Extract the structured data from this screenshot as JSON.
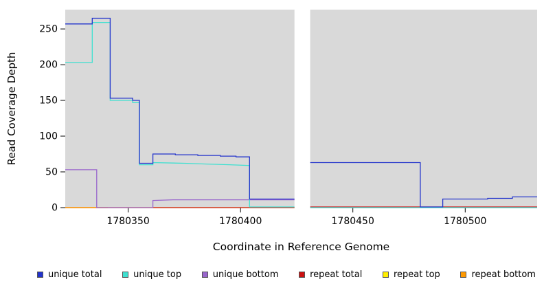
{
  "chart_data": {
    "type": "line",
    "title": "",
    "xlabel": "Coordinate in Reference Genome",
    "ylabel": "Read Coverage Depth",
    "xlim": [
      1780322,
      1780532
    ],
    "ylim": [
      0,
      277
    ],
    "xticks": [
      1780350,
      1780400,
      1780450,
      1780500
    ],
    "yticks": [
      0,
      50,
      100,
      150,
      200,
      250
    ],
    "plot_bg": "#d9d9d9",
    "grid": false,
    "legend_position": "bottom",
    "gap": {
      "x0": 1780424,
      "x1": 1780431
    },
    "series": [
      {
        "name": "repeat top",
        "color": "#ffee00",
        "segments": [
          [
            [
              1780322,
              0
            ],
            [
              1780424,
              0
            ]
          ],
          [
            [
              1780431,
              0
            ],
            [
              1780532,
              0
            ]
          ]
        ]
      },
      {
        "name": "repeat total",
        "color": "#cc1111",
        "segments": [
          [
            [
              1780322,
              0
            ],
            [
              1780424,
              0
            ]
          ],
          [
            [
              1780431,
              1
            ],
            [
              1780532,
              1
            ]
          ]
        ]
      },
      {
        "name": "repeat bottom",
        "color": "#ff9900",
        "segments": [
          [
            [
              1780322,
              0
            ],
            [
              1780341,
              0
            ]
          ]
        ]
      },
      {
        "name": "unique bottom",
        "color": "#9966cc",
        "segments": [
          [
            [
              1780322,
              53
            ],
            [
              1780336,
              53
            ],
            [
              1780336,
              0
            ],
            [
              1780361,
              0
            ],
            [
              1780361,
              10
            ],
            [
              1780370,
              11
            ],
            [
              1780404,
              11
            ],
            [
              1780424,
              11
            ]
          ],
          [
            [
              1780431,
              0
            ],
            [
              1780532,
              0
            ]
          ]
        ]
      },
      {
        "name": "unique top",
        "color": "#3fe0d0",
        "segments": [
          [
            [
              1780322,
              203
            ],
            [
              1780334,
              203
            ],
            [
              1780334,
              259
            ],
            [
              1780342,
              259
            ],
            [
              1780342,
              150
            ],
            [
              1780352,
              150
            ],
            [
              1780352,
              147
            ],
            [
              1780355,
              147
            ],
            [
              1780355,
              60
            ],
            [
              1780361,
              60
            ],
            [
              1780361,
              63
            ],
            [
              1780375,
              62
            ],
            [
              1780385,
              61
            ],
            [
              1780395,
              60
            ],
            [
              1780404,
              59
            ],
            [
              1780404,
              1
            ],
            [
              1780424,
              1
            ]
          ],
          [
            [
              1780431,
              0
            ],
            [
              1780532,
              0
            ]
          ]
        ]
      },
      {
        "name": "unique total",
        "color": "#2233cc",
        "segments": [
          [
            [
              1780322,
              257
            ],
            [
              1780334,
              257
            ],
            [
              1780334,
              265
            ],
            [
              1780342,
              265
            ],
            [
              1780342,
              153
            ],
            [
              1780352,
              153
            ],
            [
              1780352,
              150
            ],
            [
              1780355,
              150
            ],
            [
              1780355,
              62
            ],
            [
              1780361,
              62
            ],
            [
              1780361,
              75
            ],
            [
              1780371,
              75
            ],
            [
              1780371,
              74
            ],
            [
              1780381,
              74
            ],
            [
              1780381,
              73
            ],
            [
              1780391,
              73
            ],
            [
              1780391,
              72
            ],
            [
              1780398,
              72
            ],
            [
              1780398,
              71
            ],
            [
              1780404,
              71
            ],
            [
              1780404,
              12
            ],
            [
              1780424,
              12
            ]
          ],
          [
            [
              1780431,
              63
            ],
            [
              1780480,
              63
            ],
            [
              1780480,
              1
            ],
            [
              1780490,
              1
            ],
            [
              1780490,
              12
            ],
            [
              1780510,
              12
            ],
            [
              1780510,
              13
            ],
            [
              1780521,
              13
            ],
            [
              1780521,
              15
            ],
            [
              1780532,
              15
            ]
          ]
        ]
      }
    ]
  },
  "legend": {
    "items": [
      {
        "label": "unique total",
        "color": "#2233cc"
      },
      {
        "label": "unique top",
        "color": "#3fe0d0"
      },
      {
        "label": "unique bottom",
        "color": "#9966cc"
      },
      {
        "label": "repeat total",
        "color": "#cc1111"
      },
      {
        "label": "repeat top",
        "color": "#ffee00"
      },
      {
        "label": "repeat bottom",
        "color": "#ff9900"
      }
    ]
  }
}
